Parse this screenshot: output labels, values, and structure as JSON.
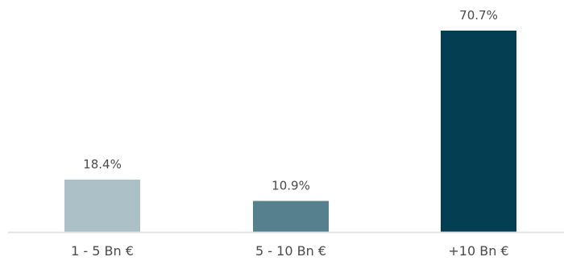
{
  "chart_data": {
    "type": "bar",
    "title": "",
    "xlabel": "",
    "ylabel": "",
    "categories": [
      "1 - 5 Bn €",
      "5 - 10 Bn €",
      "+10 Bn €"
    ],
    "values": [
      18.4,
      10.9,
      70.7
    ],
    "value_labels": [
      "18.4%",
      "10.9%",
      "70.7%"
    ],
    "unit": "%",
    "ylim": [
      0,
      70.7
    ],
    "grid": false,
    "legend": "none",
    "colors": [
      "#abc1c7",
      "#56808d",
      "#033e52"
    ],
    "axis_color": "#e3e3e3",
    "text_color": "#4a4a4a"
  }
}
